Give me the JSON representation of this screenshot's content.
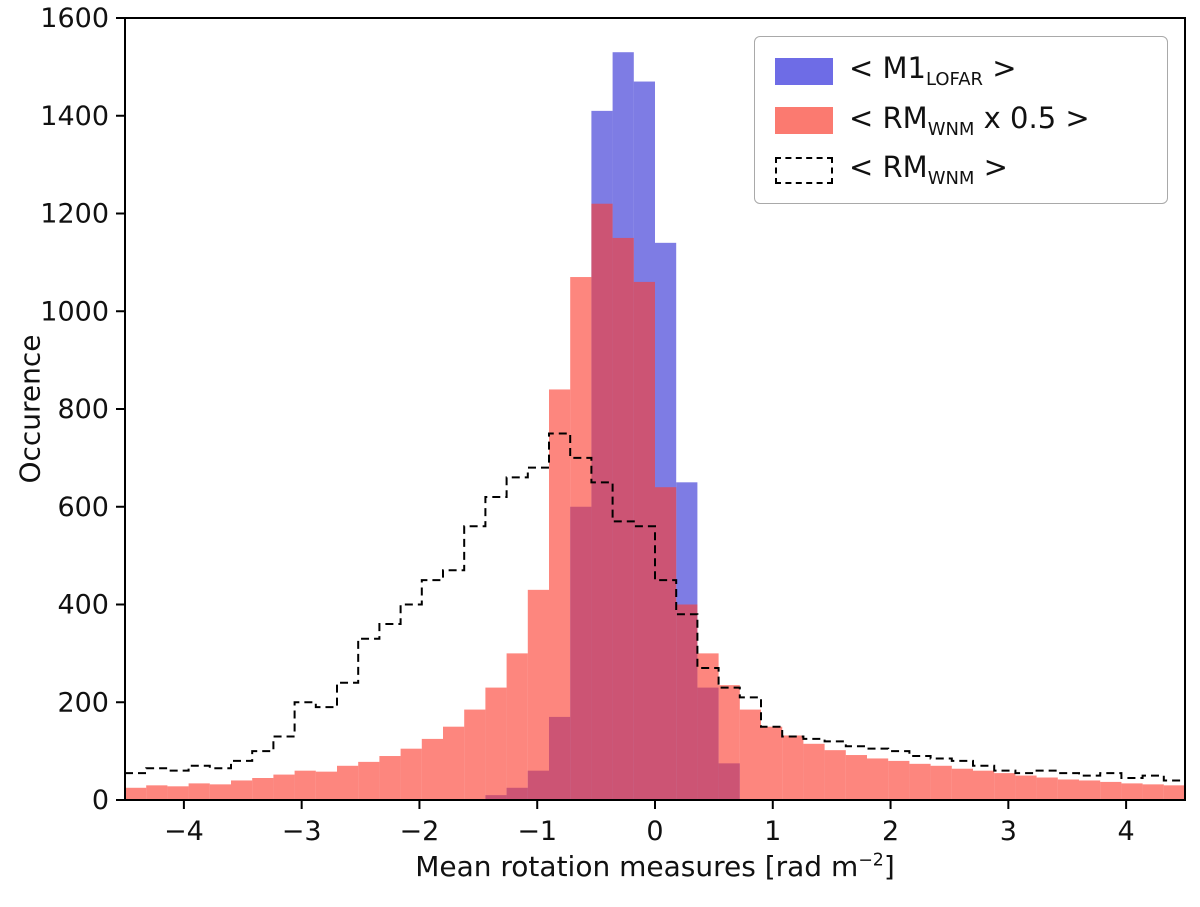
{
  "figure": {
    "background": "#ffffff"
  },
  "axes": {
    "x_label_pre": "Mean rotation measures [rad m",
    "x_label_sup": "−2",
    "x_label_post": "]",
    "y_label": "Occurence"
  },
  "legend": {
    "items": [
      {
        "pre": "< M1",
        "sub": "LOFAR",
        "post": " >",
        "color": "#6e6ce6",
        "style": "filled"
      },
      {
        "pre": "< RM",
        "sub": "WNM",
        "post": " x 0.5 >",
        "color": "#fb7a70",
        "style": "filled"
      },
      {
        "pre": "< RM",
        "sub": "WNM",
        "post": " >",
        "color": "#000000",
        "style": "dashed"
      }
    ]
  },
  "chart_data": {
    "type": "bar",
    "subtype": "overlaid-histograms",
    "title": "",
    "xlabel": "Mean rotation measures [rad m−2]",
    "ylabel": "Occurence",
    "xlim": [
      -4.5,
      4.5
    ],
    "ylim": [
      0,
      1600
    ],
    "grid": false,
    "legend_position": "upper right",
    "bin_width": 0.18,
    "bin_centers": [
      -4.41,
      -4.23,
      -4.05,
      -3.87,
      -3.69,
      -3.51,
      -3.33,
      -3.15,
      -2.97,
      -2.79,
      -2.61,
      -2.43,
      -2.25,
      -2.07,
      -1.89,
      -1.71,
      -1.53,
      -1.35,
      -1.17,
      -0.99,
      -0.81,
      -0.63,
      -0.45,
      -0.27,
      -0.09,
      0.09,
      0.27,
      0.45,
      0.63,
      0.81,
      0.99,
      1.17,
      1.35,
      1.53,
      1.71,
      1.89,
      2.07,
      2.25,
      2.43,
      2.61,
      2.79,
      2.97,
      3.15,
      3.33,
      3.51,
      3.69,
      3.87,
      4.05,
      4.23,
      4.41
    ],
    "series": [
      {
        "name": "< M1_LOFAR >",
        "style": "filled",
        "color": "#2f2bd3",
        "opacity": 0.62,
        "values": [
          0,
          0,
          0,
          0,
          0,
          0,
          0,
          0,
          0,
          0,
          0,
          0,
          0,
          0,
          0,
          0,
          0,
          10,
          25,
          60,
          170,
          600,
          1410,
          1530,
          1470,
          1140,
          650,
          230,
          75,
          0,
          0,
          0,
          0,
          0,
          0,
          0,
          0,
          0,
          0,
          0,
          0,
          0,
          0,
          0,
          0,
          0,
          0,
          0,
          0,
          0
        ]
      },
      {
        "name": "< RM_WNM x 0.5 >",
        "style": "filled",
        "color": "#fb3c2e",
        "opacity": 0.62,
        "values": [
          25,
          30,
          28,
          34,
          32,
          40,
          45,
          52,
          60,
          58,
          70,
          78,
          90,
          105,
          125,
          150,
          185,
          230,
          300,
          430,
          840,
          1070,
          1220,
          1150,
          1060,
          640,
          400,
          300,
          235,
          185,
          150,
          132,
          115,
          102,
          92,
          85,
          80,
          74,
          70,
          64,
          60,
          55,
          50,
          46,
          42,
          40,
          37,
          34,
          32,
          30
        ]
      },
      {
        "name": "< RM_WNM >",
        "style": "step-dashed",
        "color": "#000000",
        "opacity": 1,
        "values": [
          55,
          65,
          60,
          70,
          65,
          80,
          100,
          130,
          200,
          190,
          240,
          330,
          360,
          400,
          450,
          470,
          560,
          620,
          660,
          680,
          750,
          700,
          650,
          570,
          560,
          450,
          380,
          270,
          230,
          210,
          150,
          130,
          125,
          120,
          110,
          105,
          100,
          90,
          85,
          80,
          70,
          60,
          55,
          60,
          55,
          50,
          55,
          45,
          50,
          40
        ]
      }
    ],
    "xticks": [
      -4,
      -3,
      -2,
      -1,
      0,
      1,
      2,
      3,
      4
    ],
    "xtick_labels": [
      "−4",
      "−3",
      "−2",
      "−1",
      "0",
      "1",
      "2",
      "3",
      "4"
    ],
    "yticks": [
      0,
      200,
      400,
      600,
      800,
      1000,
      1200,
      1400,
      1600
    ],
    "ytick_labels": [
      "0",
      "200",
      "400",
      "600",
      "800",
      "1000",
      "1200",
      "1400",
      "1600"
    ]
  }
}
